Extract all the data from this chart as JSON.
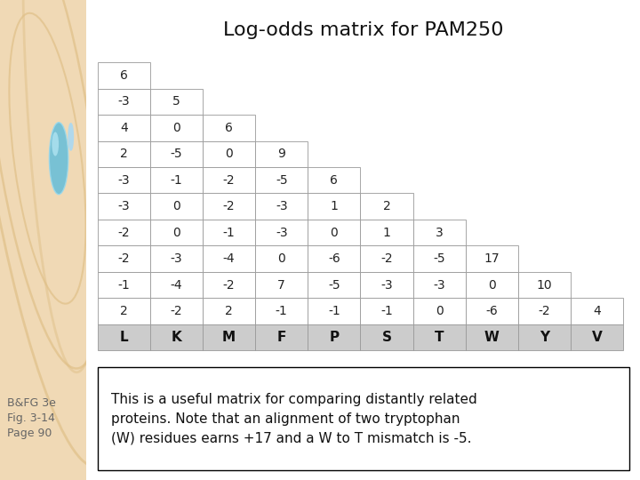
{
  "title": "Log-odds matrix for PAM250",
  "amino_acids": [
    "L",
    "K",
    "M",
    "F",
    "P",
    "S",
    "T",
    "W",
    "Y",
    "V"
  ],
  "matrix": [
    [
      6,
      null,
      null,
      null,
      null,
      null,
      null,
      null,
      null,
      null
    ],
    [
      -3,
      5,
      null,
      null,
      null,
      null,
      null,
      null,
      null,
      null
    ],
    [
      4,
      0,
      6,
      null,
      null,
      null,
      null,
      null,
      null,
      null
    ],
    [
      2,
      -5,
      0,
      9,
      null,
      null,
      null,
      null,
      null,
      null
    ],
    [
      -3,
      -1,
      -2,
      -5,
      6,
      null,
      null,
      null,
      null,
      null
    ],
    [
      -3,
      0,
      -2,
      -3,
      1,
      2,
      null,
      null,
      null,
      null
    ],
    [
      -2,
      0,
      -1,
      -3,
      0,
      1,
      3,
      null,
      null,
      null
    ],
    [
      -2,
      -3,
      -4,
      0,
      -6,
      -2,
      -5,
      17,
      null,
      null
    ],
    [
      -1,
      -4,
      -2,
      7,
      -5,
      -3,
      -3,
      0,
      10,
      null
    ],
    [
      2,
      -2,
      2,
      -1,
      -1,
      -1,
      0,
      -6,
      -2,
      4
    ]
  ],
  "description": "This is a useful matrix for comparing distantly related\nproteins. Note that an alignment of two tryptophan\n(W) residues earns +17 and a W to T mismatch is -5.",
  "sidebar_text": "B&FG 3e\nFig. 3-14\nPage 90",
  "sidebar_bg": "#f0d9b5",
  "title_fontsize": 16,
  "cell_fontsize": 10,
  "header_fontsize": 11,
  "desc_fontsize": 11,
  "sidebar_fontsize": 9,
  "sidebar_text_color": "#666666",
  "cell_border_color": "#aaaaaa",
  "header_bg": "#cccccc",
  "cell_bg": "#ffffff",
  "text_color": "#222222"
}
